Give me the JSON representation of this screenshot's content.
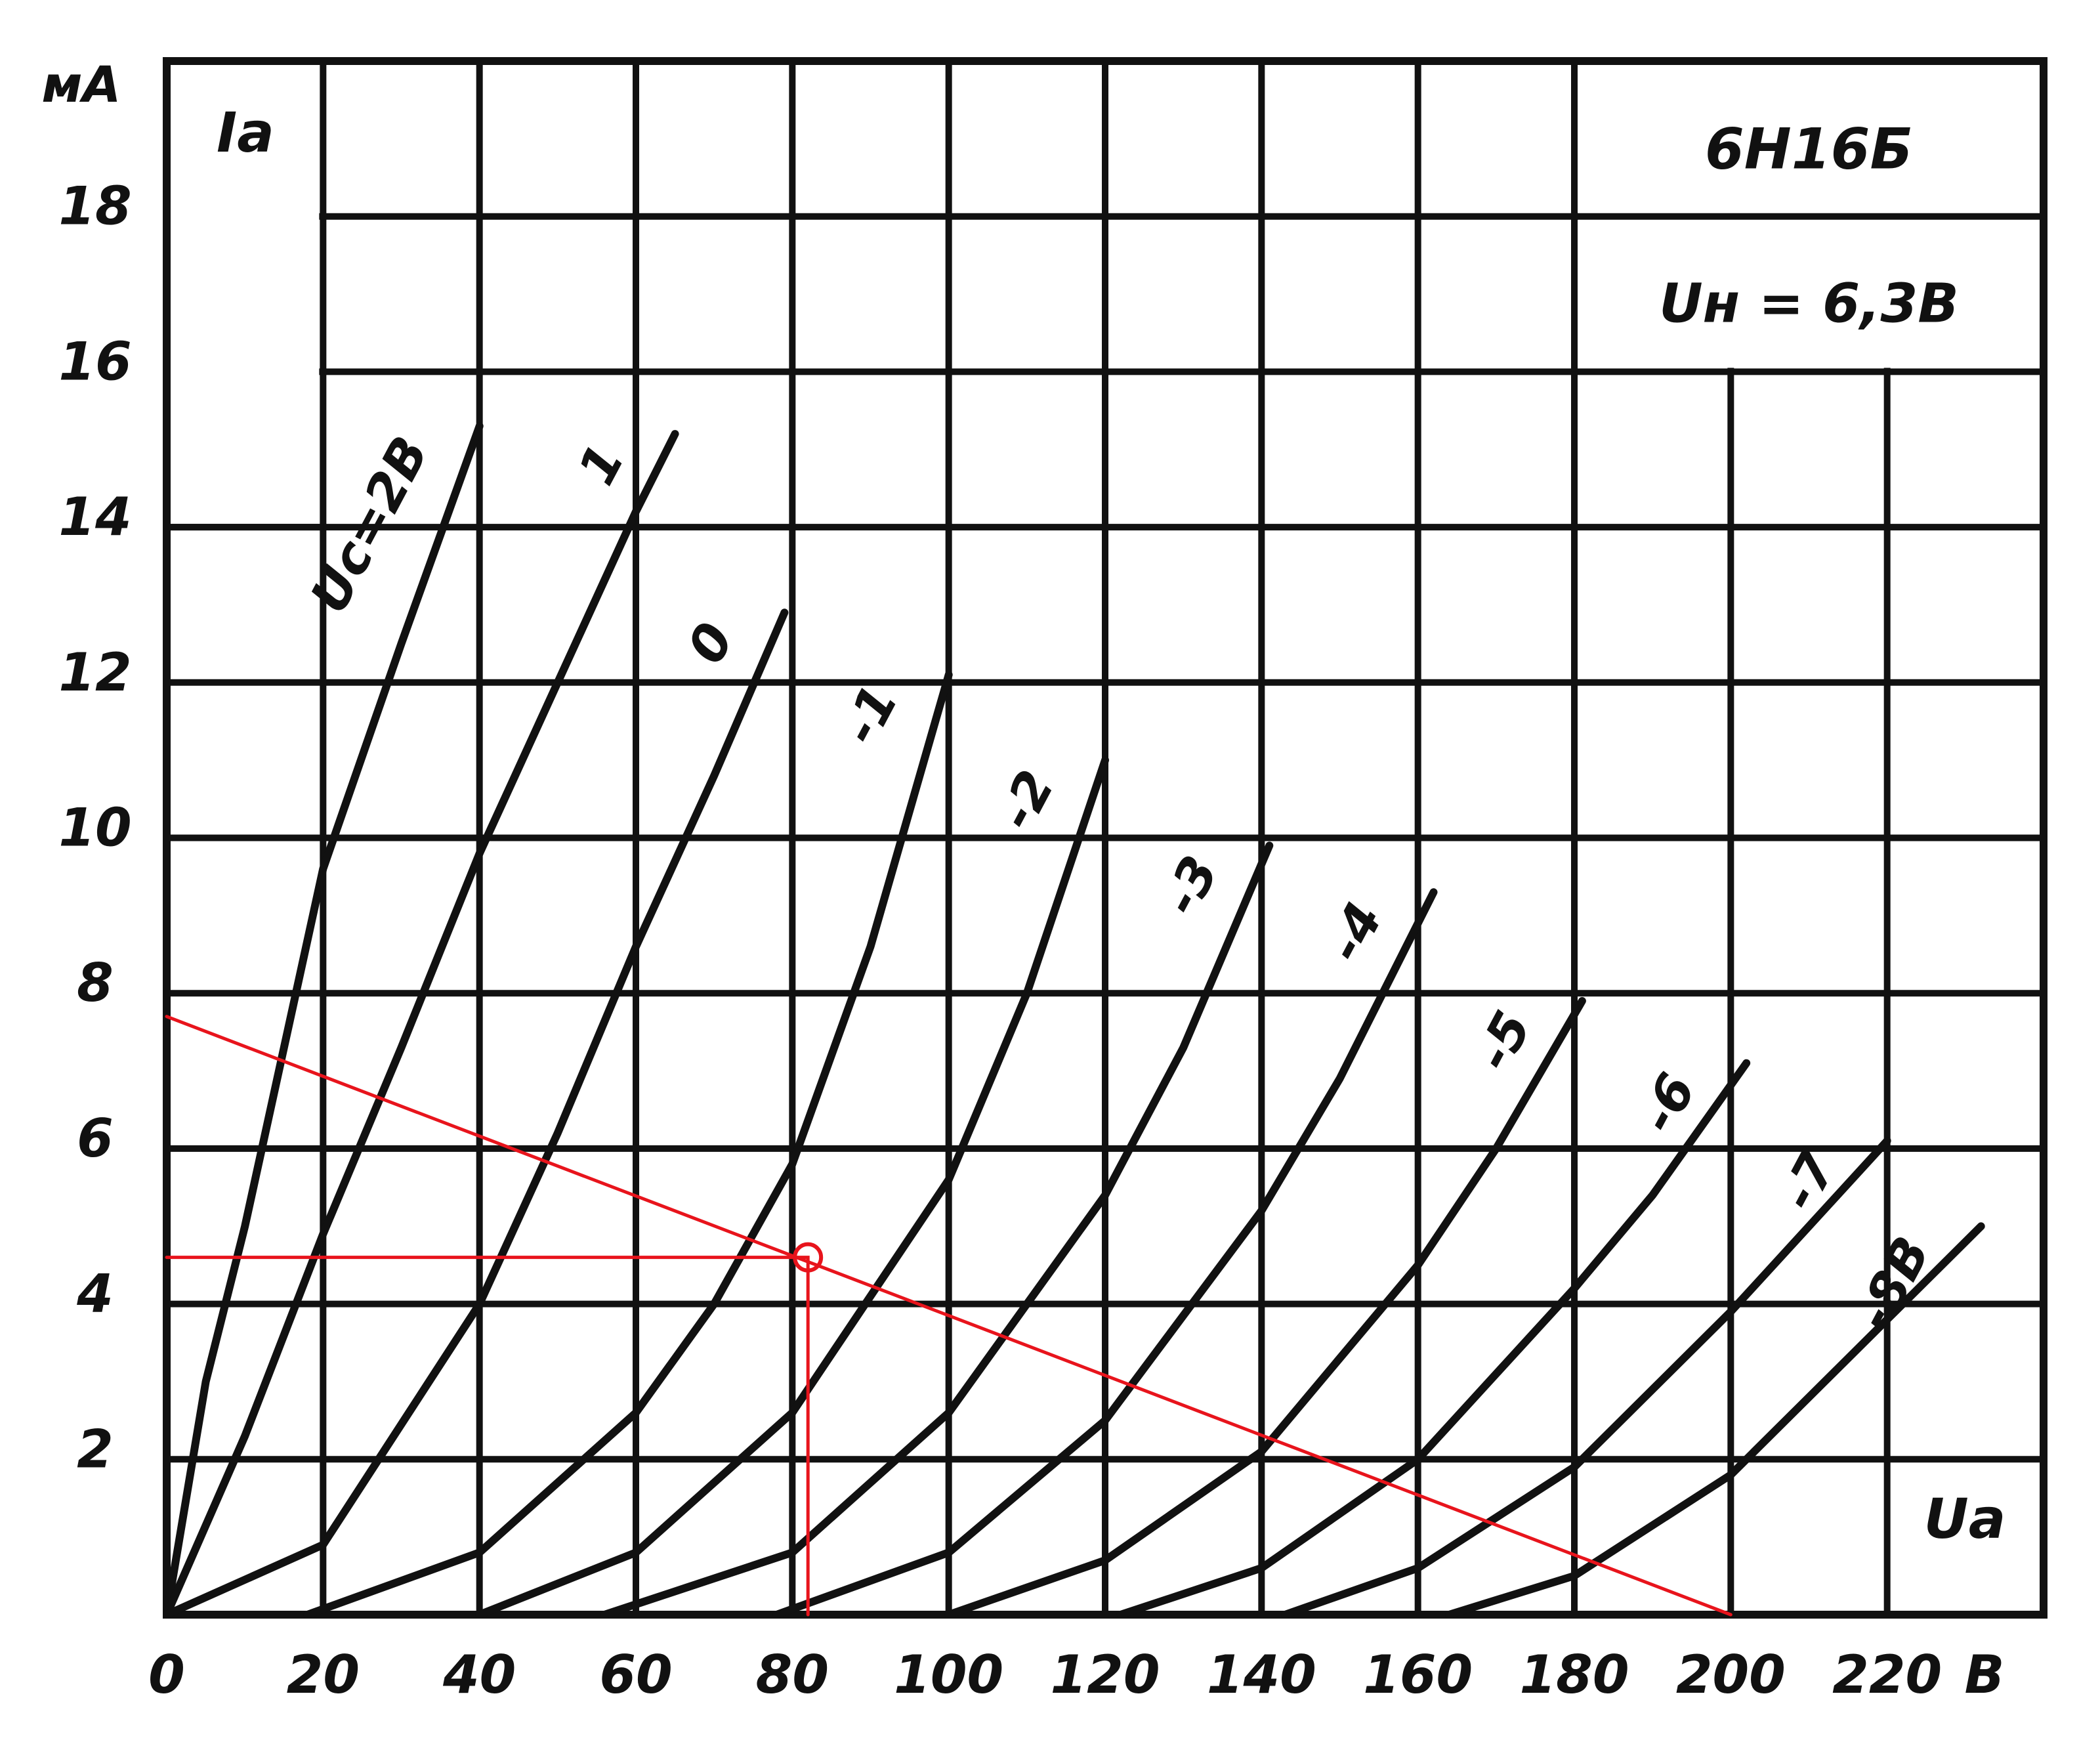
{
  "chart_data": {
    "type": "line",
    "title": "6Н16Б",
    "subtitle": "Uн = 6,3В",
    "y_unit": "мА",
    "y_label": "Iа",
    "x_label": "Uа",
    "x_unit": "В",
    "xlim": [
      0,
      240
    ],
    "ylim": [
      0,
      20
    ],
    "xticks": [
      0,
      20,
      40,
      60,
      80,
      100,
      120,
      140,
      160,
      180,
      200,
      220
    ],
    "yticks": [
      2,
      4,
      6,
      8,
      10,
      12,
      14,
      16,
      18
    ],
    "grid": true,
    "series": [
      {
        "name": "Uc=2В",
        "color": "#111111",
        "x": [
          0,
          5,
          10,
          20,
          30,
          40
        ],
        "values": [
          0,
          3,
          5,
          9.6,
          12.5,
          15.3
        ]
      },
      {
        "name": "1",
        "color": "#111111",
        "x": [
          0,
          10,
          20,
          30,
          40,
          50,
          60,
          65
        ],
        "values": [
          0,
          2.3,
          4.9,
          7.3,
          9.8,
          12,
          14.2,
          15.2
        ]
      },
      {
        "name": "0",
        "color": "#111111",
        "x": [
          0,
          20,
          40,
          50,
          60,
          70,
          79
        ],
        "values": [
          0,
          0.9,
          4,
          6.2,
          8.6,
          10.8,
          12.9
        ]
      },
      {
        "name": "-1",
        "color": "#111111",
        "x": [
          18,
          40,
          60,
          70,
          80,
          90,
          100
        ],
        "values": [
          0,
          0.8,
          2.6,
          4,
          5.8,
          8.6,
          12.1
        ]
      },
      {
        "name": "-2",
        "color": "#111111",
        "x": [
          40,
          60,
          80,
          100,
          110,
          120
        ],
        "values": [
          0,
          0.8,
          2.6,
          5.6,
          8,
          11
        ]
      },
      {
        "name": "-3",
        "color": "#111111",
        "x": [
          56,
          80,
          100,
          120,
          130,
          141
        ],
        "values": [
          0,
          0.8,
          2.6,
          5.4,
          7.3,
          9.9
        ]
      },
      {
        "name": "-4",
        "color": "#111111",
        "x": [
          78,
          100,
          120,
          140,
          150,
          162
        ],
        "values": [
          0,
          0.8,
          2.5,
          5.2,
          6.9,
          9.3
        ]
      },
      {
        "name": "-5",
        "color": "#111111",
        "x": [
          100,
          120,
          140,
          160,
          170,
          181
        ],
        "values": [
          0,
          0.7,
          2.1,
          4.5,
          6,
          7.9
        ]
      },
      {
        "name": "-6",
        "color": "#111111",
        "x": [
          122,
          140,
          160,
          180,
          190,
          202
        ],
        "values": [
          0,
          0.6,
          2,
          4.2,
          5.4,
          7.1
        ]
      },
      {
        "name": "-7",
        "color": "#111111",
        "x": [
          143,
          160,
          180,
          200,
          210,
          220
        ],
        "values": [
          0,
          0.6,
          1.9,
          3.9,
          5,
          6.1
        ]
      },
      {
        "name": "-8В",
        "color": "#111111",
        "x": [
          164,
          180,
          200,
          220,
          232
        ],
        "values": [
          0,
          0.5,
          1.8,
          3.8,
          5
        ]
      },
      {
        "color": "#e8141c",
        "x": [
          0,
          200
        ],
        "values": [
          7.7,
          0
        ]
      },
      {
        "color": "#e8141c",
        "x": [
          0,
          82,
          82
        ],
        "values": [
          4.6,
          4.6,
          0
        ]
      },
      {
        "color": "#e8141c",
        "x": [
          82
        ],
        "values": [
          4.6
        ],
        "marker": "open-circle"
      }
    ]
  }
}
